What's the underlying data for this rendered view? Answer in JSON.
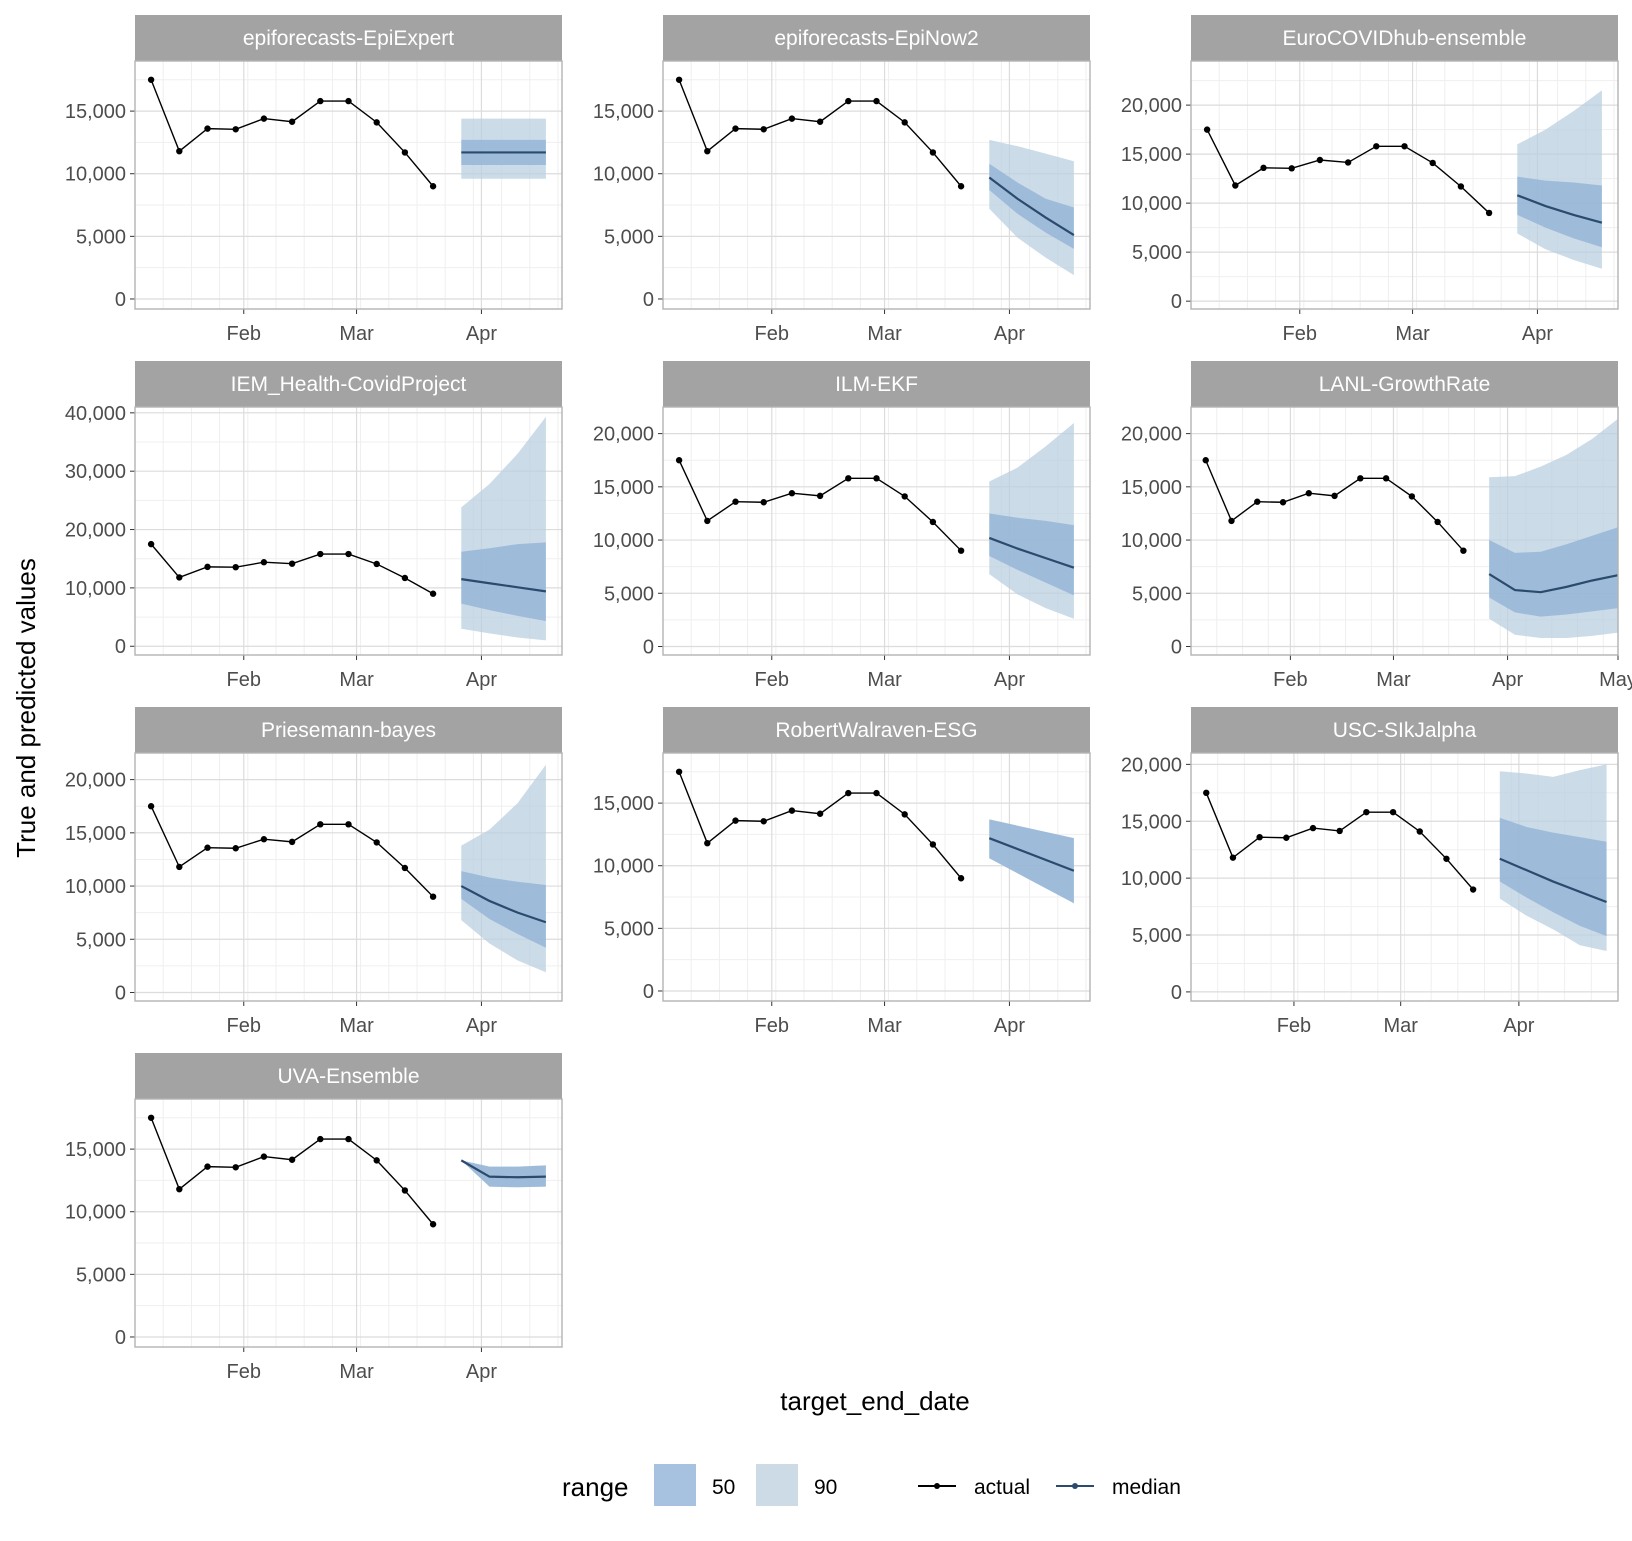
{
  "chart_data": {
    "type": "line",
    "xlabel": "target_end_date",
    "ylabel": "True and predicted values",
    "grid": true,
    "legend": {
      "position": "bottom",
      "range_title": "range",
      "range_items": [
        {
          "label": "50",
          "color": "#a6c2e0"
        },
        {
          "label": "90",
          "color": "#cddbe7"
        }
      ],
      "line_items": [
        {
          "label": "actual",
          "color": "#000000"
        },
        {
          "label": "median",
          "color": "#2c4a6e"
        }
      ]
    },
    "colors": {
      "actual": "#000000",
      "median": "#2c4a6e",
      "band50": "#8fb2d6",
      "band90": "#b9cfe0",
      "strip": "#a3a3a3",
      "panel_border": "#b3b3b3",
      "grid_major": "#dcdcdc",
      "grid_minor": "#efefef"
    },
    "actual": {
      "dates": [
        "2021-01-09",
        "2021-01-16",
        "2021-01-23",
        "2021-01-30",
        "2021-02-06",
        "2021-02-13",
        "2021-02-20",
        "2021-02-27",
        "2021-03-06",
        "2021-03-13",
        "2021-03-20",
        "2021-03-27"
      ],
      "values": [
        17500,
        11800,
        13600,
        13550,
        14400,
        14150,
        15800,
        15800,
        14100,
        11700,
        9000,
        null
      ]
    },
    "panels": [
      {
        "title": "epiforecasts-EpiExpert",
        "y_ticks": [
          0,
          5000,
          10000,
          15000
        ],
        "y_tick_labels": [
          "0",
          "5,000",
          "10,000",
          "15,000"
        ],
        "ylim": [
          -800,
          19000
        ],
        "x_ticks": [
          "Feb",
          "Mar",
          "Apr"
        ],
        "show_actual_last": false,
        "forecast": {
          "dates": [
            "2021-03-27",
            "2021-04-17"
          ],
          "median": [
            11700,
            11700
          ],
          "lo50": [
            10700,
            10700
          ],
          "hi50": [
            12700,
            12700
          ],
          "lo90": [
            9600,
            9600
          ],
          "hi90": [
            14400,
            14400
          ]
        }
      },
      {
        "title": "epiforecasts-EpiNow2",
        "y_ticks": [
          0,
          5000,
          10000,
          15000
        ],
        "y_tick_labels": [
          "0",
          "5,000",
          "10,000",
          "15,000"
        ],
        "ylim": [
          -800,
          19000
        ],
        "x_ticks": [
          "Feb",
          "Mar",
          "Apr"
        ],
        "forecast": {
          "dates": [
            "2021-03-27",
            "2021-04-03",
            "2021-04-10",
            "2021-04-17"
          ],
          "median": [
            9700,
            8000,
            6500,
            5100
          ],
          "lo50": [
            8700,
            6800,
            5300,
            4000
          ],
          "hi50": [
            10800,
            9300,
            8000,
            7300
          ],
          "lo90": [
            7200,
            4900,
            3300,
            1900
          ],
          "hi90": [
            12700,
            12200,
            11600,
            11000
          ]
        }
      },
      {
        "title": "EuroCOVIDhub-ensemble",
        "y_ticks": [
          0,
          5000,
          10000,
          15000,
          20000
        ],
        "y_tick_labels": [
          "0",
          "5,000",
          "10,000",
          "15,000",
          "20,000"
        ],
        "ylim": [
          -800,
          24500
        ],
        "x_ticks": [
          "Feb",
          "Mar",
          "Apr"
        ],
        "forecast": {
          "dates": [
            "2021-03-27",
            "2021-04-03",
            "2021-04-10",
            "2021-04-17"
          ],
          "median": [
            10800,
            9700,
            8800,
            8000
          ],
          "lo50": [
            8800,
            7500,
            6400,
            5500
          ],
          "hi50": [
            12700,
            12300,
            12100,
            11800
          ],
          "lo90": [
            6900,
            5300,
            4200,
            3300
          ],
          "hi90": [
            16000,
            17500,
            19400,
            21500
          ]
        }
      },
      {
        "title": "IEM_Health-CovidProject",
        "y_ticks": [
          0,
          10000,
          20000,
          30000,
          40000
        ],
        "y_tick_labels": [
          "0",
          "10,000",
          "20,000",
          "30,000",
          "40,000"
        ],
        "ylim": [
          -1500,
          41000
        ],
        "x_ticks": [
          "Feb",
          "Mar",
          "Apr"
        ],
        "forecast": {
          "dates": [
            "2021-03-27",
            "2021-04-03",
            "2021-04-10",
            "2021-04-17"
          ],
          "median": [
            11500,
            10800,
            10100,
            9400
          ],
          "lo50": [
            7300,
            6200,
            5200,
            4300
          ],
          "hi50": [
            16200,
            16800,
            17500,
            17800
          ],
          "lo90": [
            3000,
            2200,
            1500,
            1000
          ],
          "hi90": [
            23800,
            27800,
            33000,
            39300
          ]
        }
      },
      {
        "title": "ILM-EKF",
        "y_ticks": [
          0,
          5000,
          10000,
          15000,
          20000
        ],
        "y_tick_labels": [
          "0",
          "5,000",
          "10,000",
          "15,000",
          "20,000"
        ],
        "ylim": [
          -800,
          22500
        ],
        "x_ticks": [
          "Feb",
          "Mar",
          "Apr"
        ],
        "forecast": {
          "dates": [
            "2021-03-27",
            "2021-04-03",
            "2021-04-10",
            "2021-04-17"
          ],
          "median": [
            10200,
            9200,
            8300,
            7400
          ],
          "lo50": [
            8500,
            7200,
            6000,
            4800
          ],
          "hi50": [
            12500,
            12100,
            11800,
            11400
          ],
          "lo90": [
            6800,
            4900,
            3600,
            2600
          ],
          "hi90": [
            15500,
            16800,
            18800,
            21000
          ]
        }
      },
      {
        "title": "LANL-GrowthRate",
        "y_ticks": [
          0,
          5000,
          10000,
          15000,
          20000
        ],
        "y_tick_labels": [
          "0",
          "5,000",
          "10,000",
          "15,000",
          "20,000"
        ],
        "ylim": [
          -800,
          22500
        ],
        "x_ticks": [
          "Feb",
          "Mar",
          "Apr",
          "May"
        ],
        "xlim": [
          "2021-01-05",
          "2021-05-01"
        ],
        "forecast": {
          "dates": [
            "2021-03-27",
            "2021-04-03",
            "2021-04-10",
            "2021-04-17",
            "2021-04-24",
            "2021-05-01"
          ],
          "median": [
            6800,
            5300,
            5100,
            5600,
            6200,
            6700
          ],
          "lo50": [
            4600,
            3200,
            2800,
            3000,
            3300,
            3600
          ],
          "hi50": [
            10000,
            8800,
            8900,
            9600,
            10400,
            11200
          ],
          "lo90": [
            2600,
            1100,
            800,
            800,
            1000,
            1300
          ],
          "hi90": [
            15900,
            16000,
            16900,
            18000,
            19500,
            21400
          ]
        }
      },
      {
        "title": "Priesemann-bayes",
        "y_ticks": [
          0,
          5000,
          10000,
          15000,
          20000
        ],
        "y_tick_labels": [
          "0",
          "5,000",
          "10,000",
          "15,000",
          "20,000"
        ],
        "ylim": [
          -800,
          22500
        ],
        "x_ticks": [
          "Feb",
          "Mar",
          "Apr"
        ],
        "forecast": {
          "dates": [
            "2021-03-27",
            "2021-04-03",
            "2021-04-10",
            "2021-04-17"
          ],
          "median": [
            10000,
            8600,
            7500,
            6600
          ],
          "lo50": [
            8800,
            6900,
            5500,
            4200
          ],
          "hi50": [
            11400,
            10800,
            10400,
            10100
          ],
          "lo90": [
            6800,
            4600,
            3000,
            1900
          ],
          "hi90": [
            13800,
            15300,
            17800,
            21400
          ]
        }
      },
      {
        "title": "RobertWalraven-ESG",
        "y_ticks": [
          0,
          5000,
          10000,
          15000
        ],
        "y_tick_labels": [
          "0",
          "5,000",
          "10,000",
          "15,000"
        ],
        "ylim": [
          -800,
          19000
        ],
        "x_ticks": [
          "Feb",
          "Mar",
          "Apr"
        ],
        "forecast": {
          "dates": [
            "2021-03-27",
            "2021-04-17"
          ],
          "median": [
            12200,
            9600
          ],
          "lo50": [
            10600,
            7000
          ],
          "hi50": [
            13700,
            12200
          ],
          "lo90": [
            10600,
            7000
          ],
          "hi90": [
            13700,
            12200
          ]
        }
      },
      {
        "title": "USC-SIkJalpha",
        "y_ticks": [
          0,
          5000,
          10000,
          15000,
          20000
        ],
        "y_tick_labels": [
          "0",
          "5,000",
          "10,000",
          "15,000",
          "20,000"
        ],
        "ylim": [
          -800,
          21000
        ],
        "x_ticks": [
          "Feb",
          "Mar",
          "Apr"
        ],
        "xlim": [
          "2021-01-05",
          "2021-04-27"
        ],
        "forecast": {
          "dates": [
            "2021-03-27",
            "2021-04-03",
            "2021-04-10",
            "2021-04-17",
            "2021-04-24"
          ],
          "median": [
            11700,
            10700,
            9700,
            8800,
            7900
          ],
          "lo50": [
            9700,
            8300,
            7000,
            5800,
            4900
          ],
          "hi50": [
            15300,
            14500,
            14000,
            13600,
            13200
          ],
          "lo90": [
            8200,
            6700,
            5500,
            4100,
            3600
          ],
          "hi90": [
            19400,
            19200,
            18900,
            19500,
            20000
          ]
        }
      },
      {
        "title": "UVA-Ensemble",
        "y_ticks": [
          0,
          5000,
          10000,
          15000
        ],
        "y_tick_labels": [
          "0",
          "5,000",
          "10,000",
          "15,000"
        ],
        "ylim": [
          -800,
          19000
        ],
        "x_ticks": [
          "Feb",
          "Mar",
          "Apr"
        ],
        "show_actual_last": false,
        "forecast": {
          "dates": [
            "2021-03-27",
            "2021-04-03",
            "2021-04-10",
            "2021-04-17"
          ],
          "median": [
            14100,
            12800,
            12750,
            12800
          ],
          "lo50": [
            14100,
            12000,
            11950,
            12000
          ],
          "hi50": [
            14100,
            13600,
            13600,
            13700
          ],
          "lo90": [
            14100,
            12000,
            11950,
            12000
          ],
          "hi90": [
            14100,
            13600,
            13600,
            13700
          ]
        }
      }
    ]
  }
}
